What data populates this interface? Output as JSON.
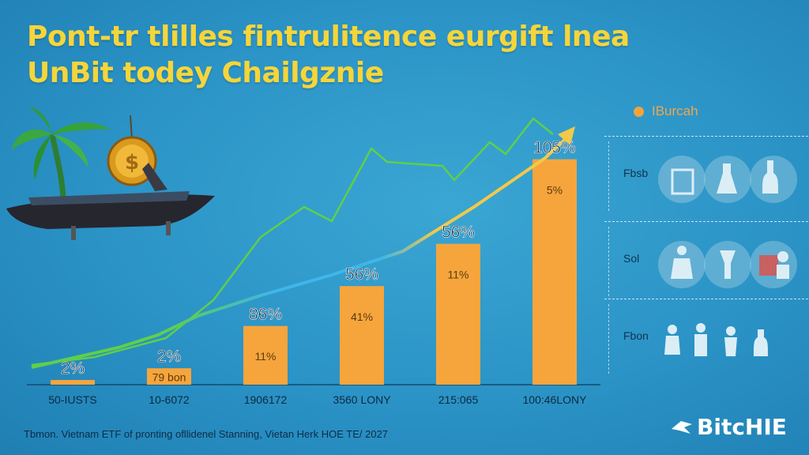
{
  "title": {
    "line1": "Pont-tr tlilles fintrulitence eurgift lnea",
    "line2": "UnBit todey Chailgznie"
  },
  "legend": {
    "label": "IBurcah",
    "color": "#f2a43a"
  },
  "panels": [
    {
      "label": "Fbsb"
    },
    {
      "label": "Sol"
    },
    {
      "label": "Fbon"
    }
  ],
  "footer": "Tbmon. Vietnam ETF of pronting ofllidenel Stanning, Vietan Herk HOE TE/ 2027",
  "brand": {
    "name": "BitcHIE"
  },
  "chart_data": {
    "type": "bar",
    "categories": [
      "50-IUSTS",
      "10-6072",
      "1906172",
      "3560 LONY",
      "215:065",
      "100:46LONY"
    ],
    "series": [
      {
        "values": [
          2,
          7,
          25,
          42,
          60,
          96
        ]
      }
    ],
    "top_labels": [
      "2%",
      "2%",
      "86%",
      "56%",
      "56%",
      "105%"
    ],
    "inner_labels": [
      "",
      "79 bon",
      "11%",
      "41%",
      "11%",
      "5%"
    ],
    "ylim": [
      0,
      110
    ],
    "bar_color": "#f6a53c",
    "line_colors": [
      "#5fcf4a",
      "#3fb6e8",
      "#f2c948"
    ]
  }
}
